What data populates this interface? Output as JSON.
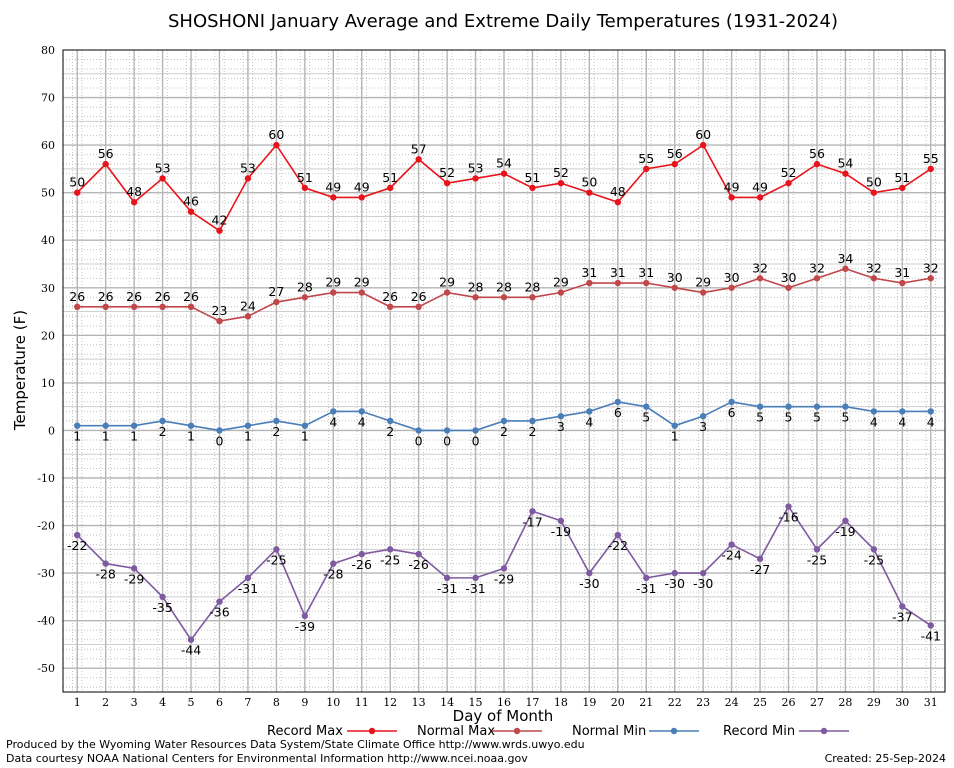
{
  "chart_data": {
    "type": "line",
    "title": "SHOSHONI January Average and Extreme Daily Temperatures (1931-2024)",
    "xlabel": "Day of Month",
    "ylabel": "Temperature (F)",
    "x": [
      1,
      2,
      3,
      4,
      5,
      6,
      7,
      8,
      9,
      10,
      11,
      12,
      13,
      14,
      15,
      16,
      17,
      18,
      19,
      20,
      21,
      22,
      23,
      24,
      25,
      26,
      27,
      28,
      29,
      30,
      31
    ],
    "ylim": [
      -55,
      80
    ],
    "yticks": [
      80,
      70,
      60,
      50,
      40,
      30,
      20,
      10,
      0,
      -10,
      -20,
      -30,
      -40,
      -50
    ],
    "grid": true,
    "legend_position": "bottom",
    "series": [
      {
        "name": "Record Max",
        "color": "#e8141c",
        "values": [
          50,
          56,
          48,
          53,
          46,
          42,
          53,
          60,
          51,
          49,
          49,
          51,
          57,
          52,
          53,
          54,
          51,
          52,
          50,
          48,
          55,
          56,
          60,
          49,
          49,
          52,
          56,
          54,
          50,
          51,
          55
        ]
      },
      {
        "name": "Normal Max",
        "color": "#c0474a",
        "values": [
          26,
          26,
          26,
          26,
          26,
          23,
          24,
          27,
          28,
          29,
          29,
          26,
          26,
          29,
          28,
          28,
          28,
          29,
          31,
          31,
          31,
          30,
          29,
          30,
          32,
          30,
          32,
          34,
          32,
          31,
          32
        ]
      },
      {
        "name": "Normal Min",
        "color": "#4a7eb8",
        "values": [
          1,
          1,
          1,
          2,
          1,
          0,
          1,
          2,
          1,
          4,
          4,
          2,
          0,
          0,
          0,
          2,
          2,
          3,
          4,
          6,
          5,
          1,
          3,
          6,
          5,
          5,
          5,
          5,
          4,
          4,
          4
        ]
      },
      {
        "name": "Record Min",
        "color": "#7e5aa0",
        "values": [
          -22,
          -28,
          -29,
          -35,
          -44,
          -36,
          -31,
          -25,
          -39,
          -28,
          -26,
          -25,
          -26,
          -31,
          -31,
          -29,
          -17,
          -19,
          -30,
          -22,
          -31,
          -30,
          -30,
          -24,
          -27,
          -16,
          -25,
          -19,
          -25,
          -37,
          -41
        ]
      }
    ]
  },
  "footer": {
    "produced_by": "Produced by the Wyoming Water Resources Data System/State Climate Office http://www.wrds.uwyo.edu",
    "courtesy": "Data courtesy NOAA National Centers for Environmental Information http://www.ncei.noaa.gov",
    "created": "Created:  25-Sep-2024"
  }
}
